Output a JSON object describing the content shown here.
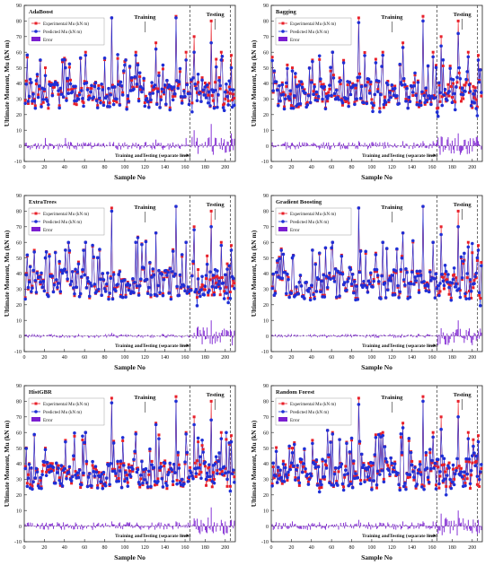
{
  "figure": {
    "xlabel": "Sample No",
    "ylabel": "Ultimate Moment, Mu (kN m)",
    "legend": [
      "Experimental Mu (kN m)",
      "Predicted Mu (kN m)",
      "Error"
    ],
    "training_label": "Training",
    "testing_label": "Testing",
    "separator_label": "Training andTesting (separate lines)"
  },
  "colors": {
    "experimental": "#e8202a",
    "predicted": "#1f2fd6",
    "error": "#7b1fd1"
  },
  "chart_data": [
    {
      "type": "line",
      "title": "AdaBoost",
      "x_range": [
        0,
        210
      ],
      "y_range": [
        -10,
        90
      ],
      "xticks": [
        0,
        20,
        40,
        60,
        80,
        100,
        120,
        140,
        160,
        180,
        200
      ],
      "yticks": [
        -10,
        0,
        10,
        20,
        30,
        40,
        50,
        60,
        70,
        80,
        90
      ],
      "separators": [
        165,
        205
      ],
      "series": [
        {
          "name": "Experimental Mu (kN m)",
          "peaks": [
            [
              20,
              50
            ],
            [
              40,
              55
            ],
            [
              60,
              60
            ],
            [
              86,
              82
            ],
            [
              110,
              60
            ],
            [
              130,
              66
            ],
            [
              150,
              83
            ],
            [
              160,
              60
            ],
            [
              168,
              70
            ],
            [
              185,
              80
            ],
            [
              195,
              60
            ],
            [
              205,
              58
            ]
          ]
        },
        {
          "name": "Predicted Mu (kN m)",
          "peaks": [
            [
              20,
              45
            ],
            [
              40,
              50
            ],
            [
              60,
              58
            ],
            [
              86,
              82
            ],
            [
              110,
              58
            ],
            [
              130,
              62
            ],
            [
              150,
              82
            ],
            [
              160,
              55
            ],
            [
              168,
              60
            ],
            [
              185,
              66
            ],
            [
              195,
              55
            ],
            [
              205,
              50
            ]
          ]
        },
        {
          "name": "Error",
          "range": [
            -12,
            14
          ]
        }
      ]
    },
    {
      "type": "line",
      "title": "Bagging",
      "x_range": [
        0,
        210
      ],
      "y_range": [
        -10,
        90
      ],
      "xticks": [
        0,
        20,
        40,
        60,
        80,
        100,
        120,
        140,
        160,
        180,
        200
      ],
      "yticks": [
        -10,
        0,
        10,
        20,
        30,
        40,
        50,
        60,
        70,
        80,
        90
      ],
      "separators": [
        165,
        205
      ],
      "series": [
        {
          "name": "Experimental Mu (kN m)",
          "peaks": [
            [
              20,
              50
            ],
            [
              40,
              55
            ],
            [
              60,
              60
            ],
            [
              86,
              82
            ],
            [
              110,
              60
            ],
            [
              130,
              66
            ],
            [
              150,
              83
            ],
            [
              160,
              60
            ],
            [
              168,
              70
            ],
            [
              185,
              80
            ],
            [
              195,
              60
            ],
            [
              205,
              58
            ]
          ]
        },
        {
          "name": "Predicted Mu (kN m)",
          "peaks": [
            [
              20,
              48
            ],
            [
              40,
              54
            ],
            [
              60,
              60
            ],
            [
              86,
              79
            ],
            [
              110,
              58
            ],
            [
              130,
              63
            ],
            [
              150,
              80
            ],
            [
              160,
              57
            ],
            [
              168,
              64
            ],
            [
              185,
              72
            ],
            [
              195,
              57
            ],
            [
              205,
              55
            ]
          ]
        },
        {
          "name": "Error",
          "range": [
            -12,
            14
          ]
        }
      ]
    },
    {
      "type": "line",
      "title": "ExtraTrees",
      "x_range": [
        0,
        210
      ],
      "y_range": [
        -10,
        90
      ],
      "xticks": [
        0,
        20,
        40,
        60,
        80,
        100,
        120,
        140,
        160,
        180,
        200
      ],
      "yticks": [
        -10,
        0,
        10,
        20,
        30,
        40,
        50,
        60,
        70,
        80,
        90
      ],
      "separators": [
        165,
        205
      ],
      "series": [
        {
          "name": "Experimental Mu (kN m)",
          "peaks": [
            [
              20,
              50
            ],
            [
              40,
              55
            ],
            [
              60,
              60
            ],
            [
              86,
              82
            ],
            [
              110,
              60
            ],
            [
              130,
              66
            ],
            [
              150,
              83
            ],
            [
              160,
              60
            ],
            [
              168,
              70
            ],
            [
              185,
              80
            ],
            [
              195,
              60
            ],
            [
              205,
              58
            ]
          ]
        },
        {
          "name": "Predicted Mu (kN m)",
          "peaks": [
            [
              20,
              50
            ],
            [
              40,
              55
            ],
            [
              60,
              60
            ],
            [
              86,
              80
            ],
            [
              110,
              60
            ],
            [
              130,
              66
            ],
            [
              150,
              83
            ],
            [
              160,
              60
            ],
            [
              168,
              68
            ],
            [
              185,
              70
            ],
            [
              195,
              58
            ],
            [
              205,
              55
            ]
          ]
        },
        {
          "name": "Error",
          "range": [
            -8,
            10
          ]
        }
      ]
    },
    {
      "type": "line",
      "title": "Gradient Boosting",
      "x_range": [
        0,
        210
      ],
      "y_range": [
        -10,
        90
      ],
      "xticks": [
        0,
        20,
        40,
        60,
        80,
        100,
        120,
        140,
        160,
        180,
        200
      ],
      "yticks": [
        -10,
        0,
        10,
        20,
        30,
        40,
        50,
        60,
        70,
        80,
        90
      ],
      "separators": [
        165,
        205
      ],
      "series": [
        {
          "name": "Experimental Mu (kN m)",
          "peaks": [
            [
              20,
              50
            ],
            [
              40,
              55
            ],
            [
              60,
              60
            ],
            [
              86,
              82
            ],
            [
              110,
              60
            ],
            [
              130,
              66
            ],
            [
              150,
              83
            ],
            [
              160,
              60
            ],
            [
              168,
              70
            ],
            [
              185,
              80
            ],
            [
              195,
              60
            ],
            [
              205,
              58
            ]
          ]
        },
        {
          "name": "Predicted Mu (kN m)",
          "peaks": [
            [
              20,
              50
            ],
            [
              40,
              55
            ],
            [
              60,
              60
            ],
            [
              86,
              82
            ],
            [
              110,
              60
            ],
            [
              130,
              66
            ],
            [
              150,
              83
            ],
            [
              160,
              60
            ],
            [
              168,
              65
            ],
            [
              185,
              70
            ],
            [
              195,
              57
            ],
            [
              205,
              55
            ]
          ]
        },
        {
          "name": "Error",
          "range": [
            -8,
            10
          ]
        }
      ]
    },
    {
      "type": "line",
      "title": "HistGBR",
      "x_range": [
        0,
        210
      ],
      "y_range": [
        -10,
        90
      ],
      "xticks": [
        0,
        20,
        40,
        60,
        80,
        100,
        120,
        140,
        160,
        180,
        200
      ],
      "yticks": [
        -10,
        0,
        10,
        20,
        30,
        40,
        50,
        60,
        70,
        80,
        90
      ],
      "separators": [
        165,
        205
      ],
      "series": [
        {
          "name": "Experimental Mu (kN m)",
          "peaks": [
            [
              20,
              50
            ],
            [
              40,
              55
            ],
            [
              60,
              60
            ],
            [
              86,
              82
            ],
            [
              110,
              60
            ],
            [
              130,
              66
            ],
            [
              150,
              83
            ],
            [
              160,
              60
            ],
            [
              168,
              70
            ],
            [
              185,
              80
            ],
            [
              195,
              60
            ],
            [
              205,
              58
            ]
          ]
        },
        {
          "name": "Predicted Mu (kN m)",
          "peaks": [
            [
              20,
              49
            ],
            [
              40,
              54
            ],
            [
              60,
              60
            ],
            [
              86,
              79
            ],
            [
              110,
              59
            ],
            [
              130,
              65
            ],
            [
              150,
              80
            ],
            [
              160,
              59
            ],
            [
              168,
              65
            ],
            [
              185,
              68
            ],
            [
              195,
              56
            ],
            [
              205,
              54
            ]
          ]
        },
        {
          "name": "Error",
          "range": [
            -10,
            12
          ]
        }
      ]
    },
    {
      "type": "line",
      "title": "Random Forest",
      "x_range": [
        0,
        210
      ],
      "y_range": [
        -10,
        90
      ],
      "xticks": [
        0,
        20,
        40,
        60,
        80,
        100,
        120,
        140,
        160,
        180,
        200
      ],
      "yticks": [
        -10,
        0,
        10,
        20,
        30,
        40,
        50,
        60,
        70,
        80,
        90
      ],
      "separators": [
        165,
        205
      ],
      "series": [
        {
          "name": "Experimental Mu (kN m)",
          "peaks": [
            [
              20,
              50
            ],
            [
              40,
              55
            ],
            [
              60,
              60
            ],
            [
              86,
              82
            ],
            [
              110,
              60
            ],
            [
              130,
              66
            ],
            [
              150,
              83
            ],
            [
              160,
              60
            ],
            [
              168,
              70
            ],
            [
              185,
              80
            ],
            [
              195,
              60
            ],
            [
              205,
              58
            ]
          ]
        },
        {
          "name": "Predicted Mu (kN m)",
          "peaks": [
            [
              20,
              47
            ],
            [
              40,
              53
            ],
            [
              60,
              59
            ],
            [
              86,
              78
            ],
            [
              110,
              58
            ],
            [
              130,
              63
            ],
            [
              150,
              80
            ],
            [
              160,
              57
            ],
            [
              168,
              62
            ],
            [
              185,
              70
            ],
            [
              195,
              56
            ],
            [
              205,
              54
            ]
          ]
        },
        {
          "name": "Error",
          "range": [
            -12,
            14
          ]
        }
      ]
    }
  ]
}
